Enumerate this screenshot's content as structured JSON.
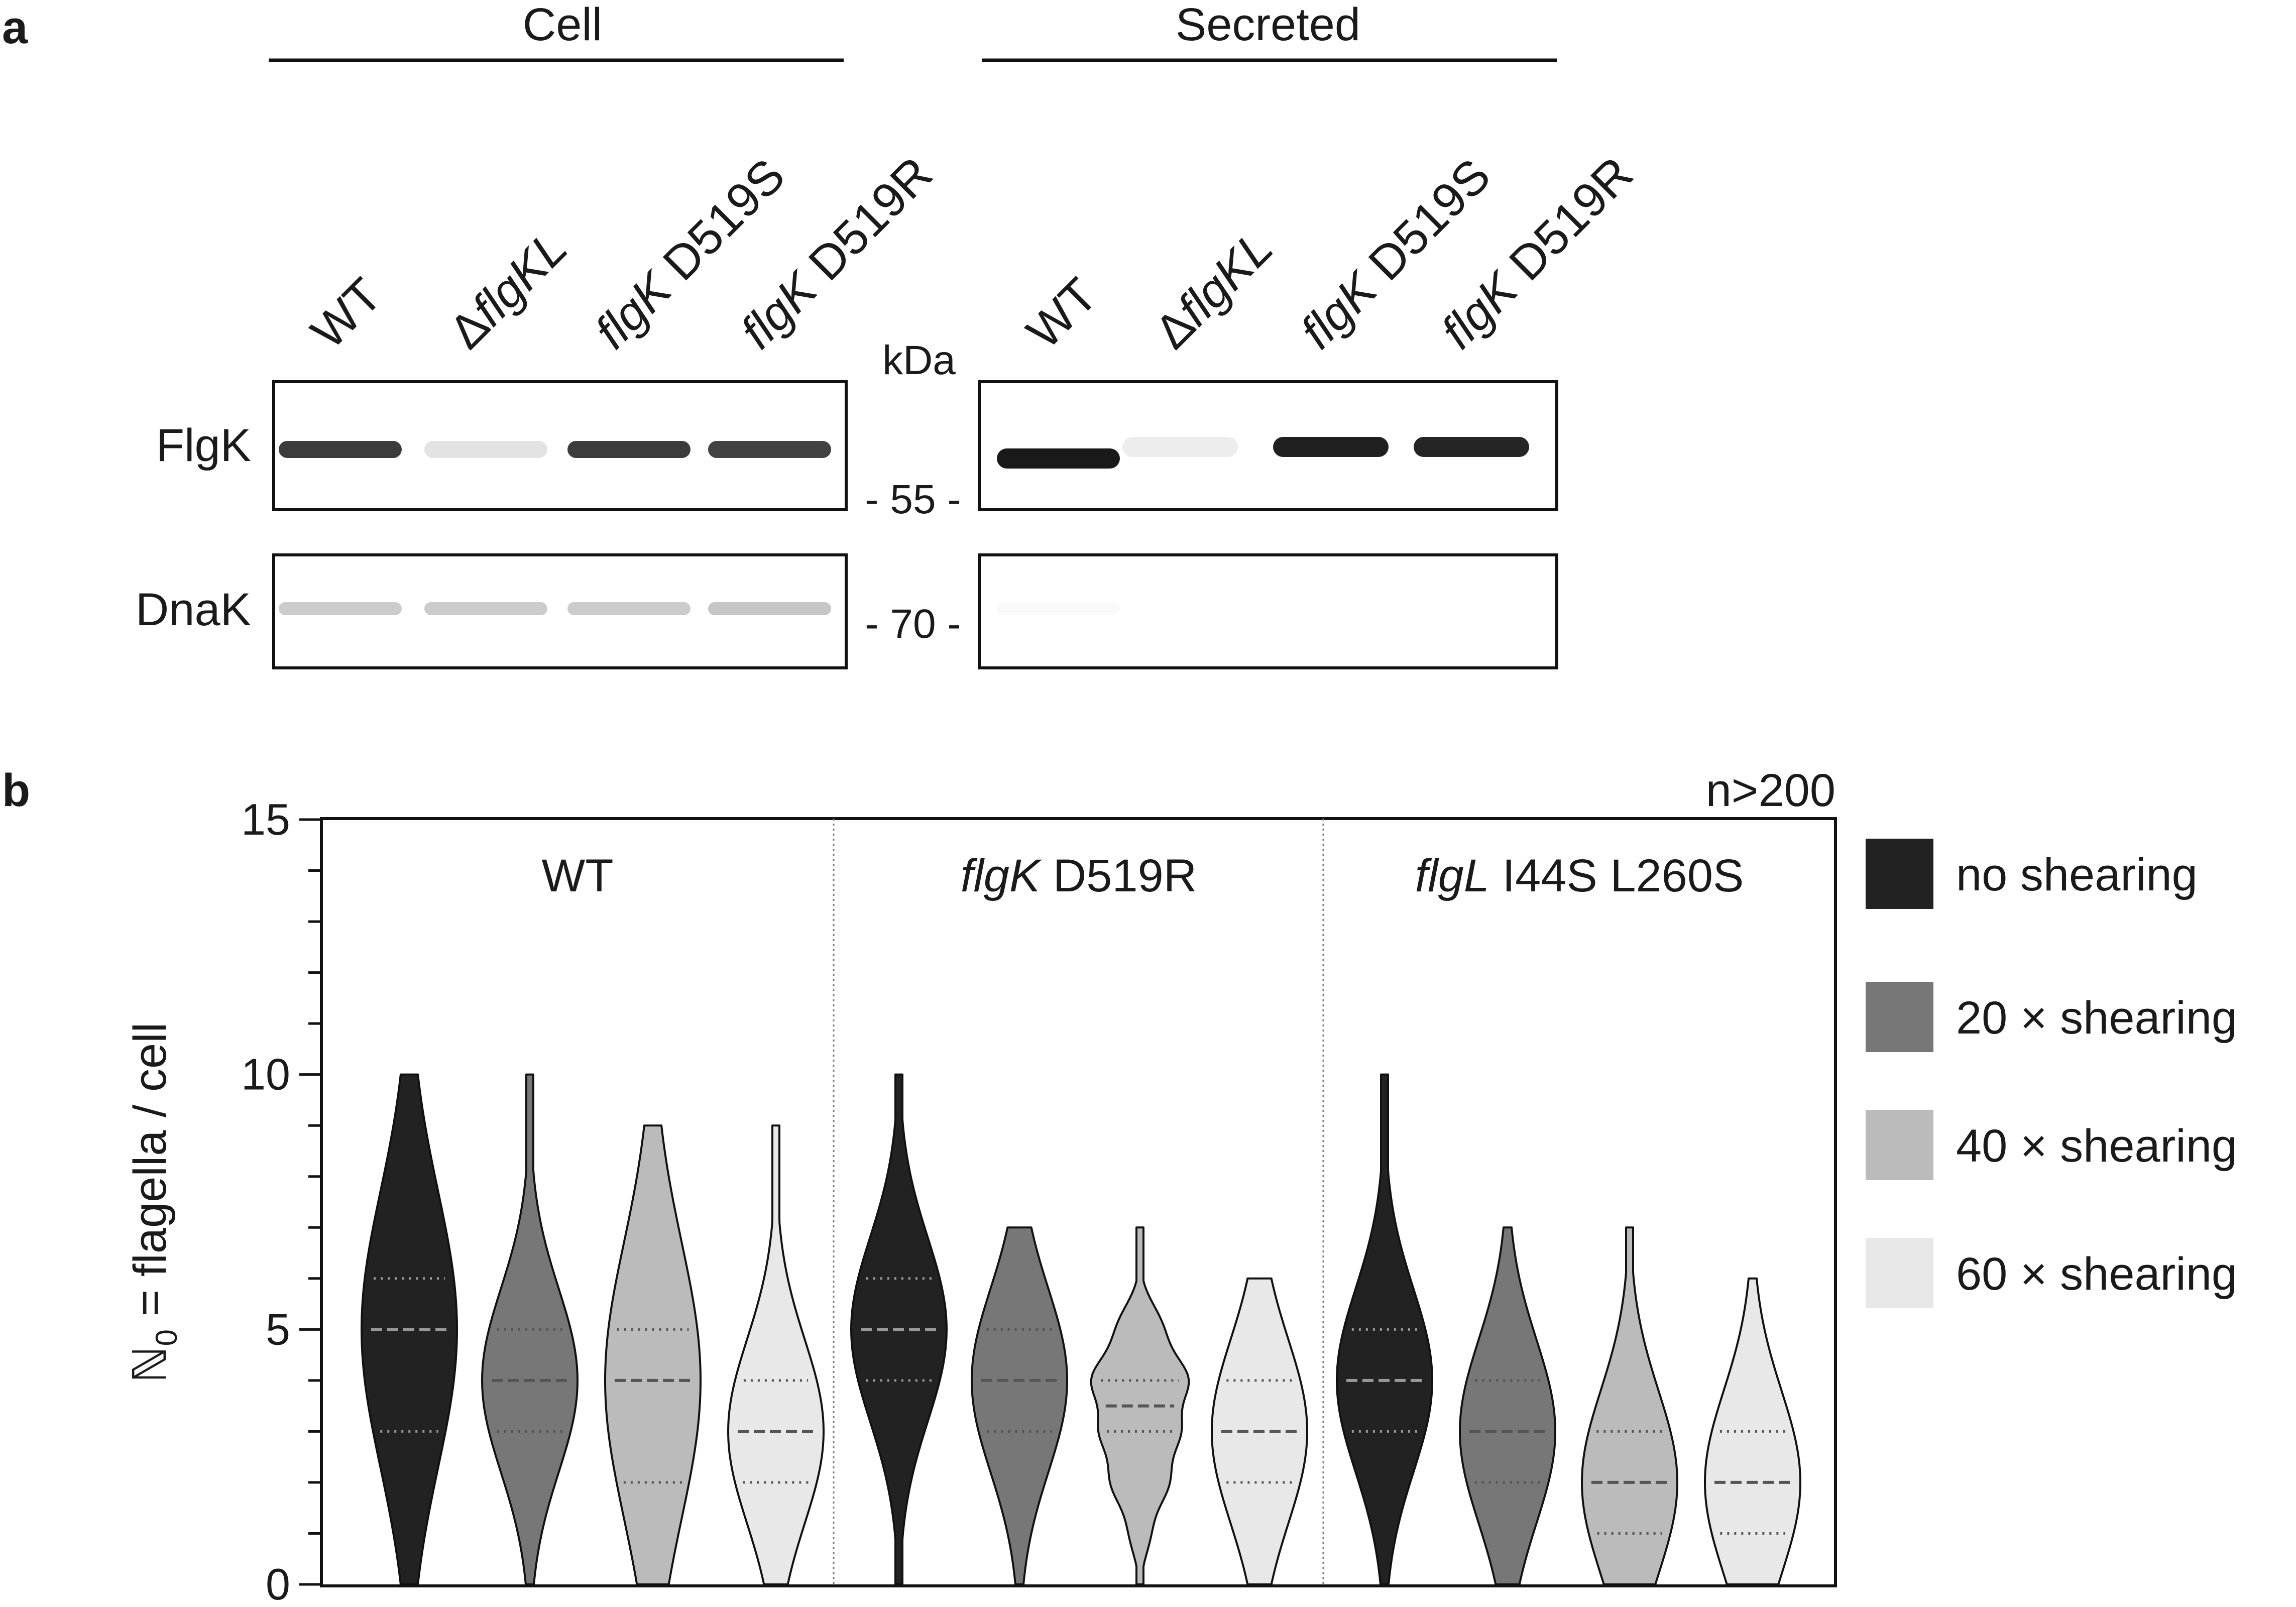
{
  "panel_a": {
    "letter": "a",
    "group_labels": [
      "Cell",
      "Secreted"
    ],
    "lane_labels": [
      {
        "italic": "",
        "plain": "WT",
        "prefix": ""
      },
      {
        "italic": "flgKL",
        "plain": "",
        "prefix": "Δ"
      },
      {
        "italic": "flgK",
        "plain": " D519S",
        "prefix": ""
      },
      {
        "italic": "flgK",
        "plain": " D519R",
        "prefix": ""
      }
    ],
    "kda_label": "kDa",
    "rows": [
      {
        "label": "FlgK",
        "marker": "- 55 -",
        "cell_intensity": [
          0.85,
          0.12,
          0.85,
          0.82
        ],
        "secreted_intensity": [
          1.0,
          0.08,
          0.97,
          0.95
        ]
      },
      {
        "label": "DnaK",
        "marker": "- 70 -",
        "cell_intensity": [
          0.22,
          0.22,
          0.22,
          0.25
        ],
        "secreted_intensity": [
          0.02,
          0.0,
          0.0,
          0.0
        ]
      }
    ]
  },
  "panel_b": {
    "letter": "b",
    "n_label": "n>200",
    "groups": [
      {
        "italic": "",
        "plain": "WT"
      },
      {
        "italic": "flgK",
        "plain": " D519R"
      },
      {
        "italic": "flgL",
        "plain": " I44S L260S"
      }
    ],
    "legend": [
      {
        "label": "no shearing",
        "color": "#222222"
      },
      {
        "label": "20 × shearing",
        "color": "#777777"
      },
      {
        "label": "40 × shearing",
        "color": "#bbbbbb"
      },
      {
        "label": "60 × shearing",
        "color": "#e8e8e8"
      }
    ]
  },
  "chart_data": {
    "type": "violin",
    "ylabel": "ℕ0 = flagella / cell",
    "ylim": [
      0,
      15
    ],
    "yticks": [
      0,
      5,
      10,
      15
    ],
    "series": [
      {
        "group": "WT",
        "condition": "no shearing",
        "max": 10,
        "median": 5,
        "q1": 3,
        "q3": 6
      },
      {
        "group": "WT",
        "condition": "20 × shearing",
        "max": 10,
        "median": 4,
        "q1": 3,
        "q3": 5
      },
      {
        "group": "WT",
        "condition": "40 × shearing",
        "max": 9,
        "median": 4,
        "q1": 2,
        "q3": 5
      },
      {
        "group": "WT",
        "condition": "60 × shearing",
        "max": 9,
        "median": 3,
        "q1": 2,
        "q3": 4
      },
      {
        "group": "flgK D519R",
        "condition": "no shearing",
        "max": 10,
        "median": 5,
        "q1": 4,
        "q3": 6
      },
      {
        "group": "flgK D519R",
        "condition": "20 × shearing",
        "max": 7,
        "median": 4,
        "q1": 3,
        "q3": 5
      },
      {
        "group": "flgK D519R",
        "condition": "40 × shearing",
        "max": 7,
        "median": 3.5,
        "q1": 3,
        "q3": 4
      },
      {
        "group": "flgK D519R",
        "condition": "60 × shearing",
        "max": 6,
        "median": 3,
        "q1": 2,
        "q3": 4
      },
      {
        "group": "flgL I44S L260S",
        "condition": "no shearing",
        "max": 10,
        "median": 4,
        "q1": 3,
        "q3": 5
      },
      {
        "group": "flgL I44S L260S",
        "condition": "20 × shearing",
        "max": 7,
        "median": 3,
        "q1": 2,
        "q3": 4
      },
      {
        "group": "flgL I44S L260S",
        "condition": "40 × shearing",
        "max": 7,
        "median": 2,
        "q1": 1,
        "q3": 3
      },
      {
        "group": "flgL I44S L260S",
        "condition": "60 × shearing",
        "max": 6,
        "median": 2,
        "q1": 1,
        "q3": 3
      }
    ]
  }
}
